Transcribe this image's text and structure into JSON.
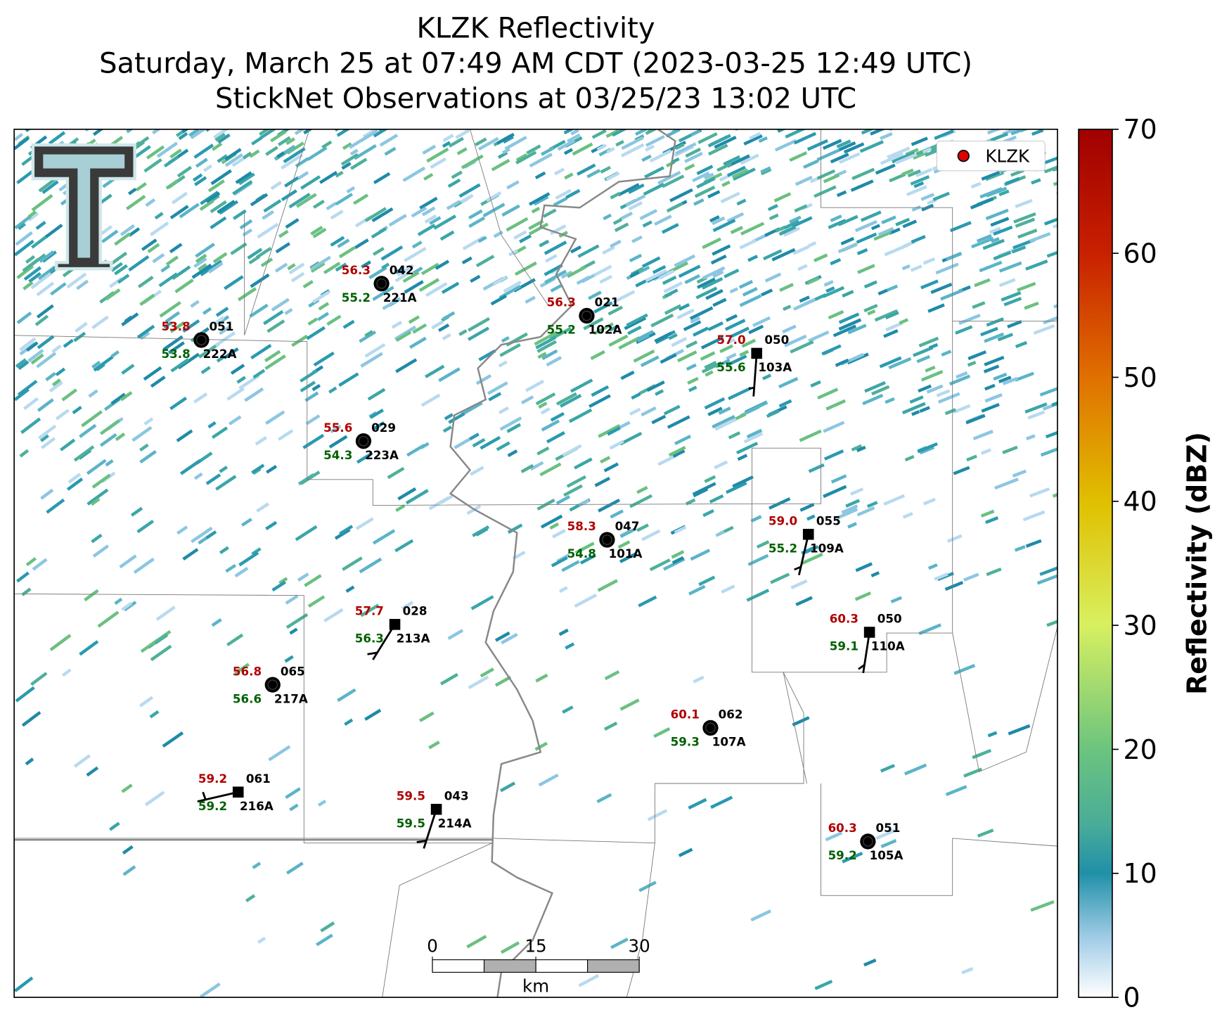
{
  "title": [
    "KLZK Reflectivity",
    "Saturday, March 25 at 07:49 AM CDT (2023-03-25 12:49 UTC)",
    "StickNet Observations at 03/25/23 13:02 UTC"
  ],
  "legend": "KLZK",
  "colorbar": {
    "label": "Reflectivity (dBZ)",
    "lim": [
      0,
      70
    ],
    "ticks": [
      0,
      10,
      20,
      30,
      40,
      50,
      60,
      70
    ]
  },
  "scale_bar": {
    "ticks": [
      0,
      15,
      30
    ],
    "unit": "km"
  },
  "stations": [
    {
      "temperature": "56.3",
      "dewpoint": "55.2",
      "code": "042",
      "id": "221A"
    },
    {
      "temperature": "53.8",
      "dewpoint": "53.8",
      "code": "051",
      "id": "222A"
    },
    {
      "temperature": "56.3",
      "dewpoint": "55.2",
      "code": "021",
      "id": "102A"
    },
    {
      "temperature": "57.0",
      "dewpoint": "55.6",
      "code": "050",
      "id": "103A"
    },
    {
      "temperature": "55.6",
      "dewpoint": "54.3",
      "code": "029",
      "id": "223A"
    },
    {
      "temperature": "58.3",
      "dewpoint": "54.8",
      "code": "047",
      "id": "101A"
    },
    {
      "temperature": "59.0",
      "dewpoint": "55.2",
      "code": "055",
      "id": "109A"
    },
    {
      "temperature": "57.7",
      "dewpoint": "56.3",
      "code": "028",
      "id": "213A"
    },
    {
      "temperature": "60.3",
      "dewpoint": "59.1",
      "code": "050",
      "id": "110A"
    },
    {
      "temperature": "56.8",
      "dewpoint": "56.6",
      "code": "065",
      "id": "217A"
    },
    {
      "temperature": "60.1",
      "dewpoint": "59.3",
      "code": "062",
      "id": "107A"
    },
    {
      "temperature": "59.2",
      "dewpoint": "59.2",
      "code": "061",
      "id": "216A"
    },
    {
      "temperature": "59.5",
      "dewpoint": "59.5",
      "code": "043",
      "id": "214A"
    },
    {
      "temperature": "60.3",
      "dewpoint": "59.2",
      "code": "051",
      "id": "105A"
    }
  ]
}
